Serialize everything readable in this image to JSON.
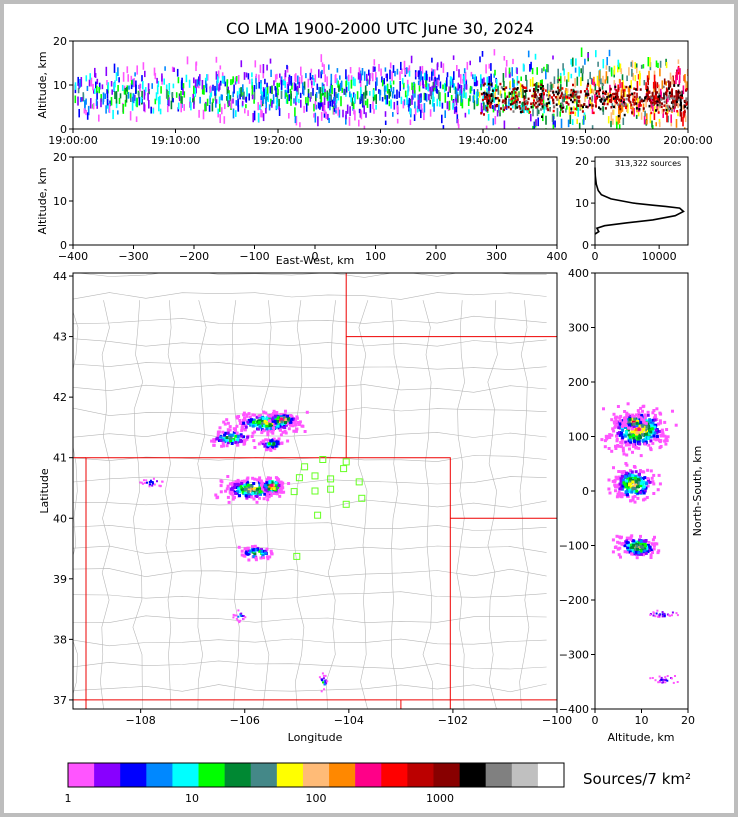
{
  "chart_data": [
    {
      "type": "heatmap",
      "panel": "time-altitude",
      "title": "CO LMA 1900-2000 UTC June 30, 2024",
      "ylabel": "Altitude, km",
      "ylim": [
        0,
        20
      ],
      "yticks": [
        "0",
        "10",
        "20"
      ],
      "xticks": [
        "19:00:00",
        "19:10:00",
        "19:20:00",
        "19:30:00",
        "19:40:00",
        "19:50:00",
        "20:00:00"
      ]
    },
    {
      "type": "heatmap",
      "panel": "east-west-altitude",
      "xlabel": "East-West, km",
      "ylabel": "Altitude, km",
      "xlim": [
        -400,
        400
      ],
      "ylim": [
        0,
        20
      ],
      "xticks": [
        "−400",
        "−300",
        "−200",
        "−100",
        "0",
        "100",
        "200",
        "300",
        "400"
      ],
      "yticks": [
        "0",
        "10",
        "20"
      ]
    },
    {
      "type": "line",
      "panel": "altitude-histogram",
      "annotation": "313,322 sources",
      "xlim": [
        0,
        14500
      ],
      "ylim": [
        0,
        21
      ],
      "xticks": [
        "0",
        "10000"
      ],
      "yticks": [
        "0",
        "10",
        "20"
      ],
      "x": [
        0,
        600,
        300,
        1500,
        5000,
        9000,
        12500,
        13800,
        13200,
        11000,
        9000,
        6000,
        2500,
        1000,
        500,
        200,
        50,
        0
      ],
      "y": [
        2.6,
        3.2,
        4.0,
        4.6,
        5.3,
        6.0,
        7.0,
        8.0,
        8.8,
        9.2,
        9.5,
        10.0,
        11.0,
        12.0,
        13.0,
        14.5,
        16.5,
        18.5
      ]
    },
    {
      "type": "heatmap",
      "panel": "plan-view",
      "xlabel": "Longitude",
      "ylabel": "Latitude",
      "xlim": [
        -109.3,
        -100
      ],
      "ylim": [
        36.85,
        44.05
      ],
      "xticks": [
        "−108",
        "−106",
        "−104",
        "−102",
        "−100"
      ],
      "yticks": [
        "37",
        "38",
        "39",
        "40",
        "41",
        "42",
        "43",
        "44"
      ],
      "stations": [
        {
          "lon": -104.5,
          "lat": 40.97
        },
        {
          "lon": -104.05,
          "lat": 40.93
        },
        {
          "lon": -104.85,
          "lat": 40.85
        },
        {
          "lon": -104.1,
          "lat": 40.82
        },
        {
          "lon": -104.95,
          "lat": 40.67
        },
        {
          "lon": -104.65,
          "lat": 40.7
        },
        {
          "lon": -104.35,
          "lat": 40.65
        },
        {
          "lon": -103.8,
          "lat": 40.6
        },
        {
          "lon": -104.35,
          "lat": 40.48
        },
        {
          "lon": -104.65,
          "lat": 40.45
        },
        {
          "lon": -105.05,
          "lat": 40.44
        },
        {
          "lon": -103.75,
          "lat": 40.33
        },
        {
          "lon": -104.05,
          "lat": 40.23
        },
        {
          "lon": -104.6,
          "lat": 40.05
        },
        {
          "lon": -105.0,
          "lat": 39.37
        }
      ]
    },
    {
      "type": "heatmap",
      "panel": "altitude-north-south",
      "xlabel": "Altitude, km",
      "ylabel": "North-South, km",
      "xlim": [
        0,
        20
      ],
      "ylim": [
        -400,
        400
      ],
      "xticks": [
        "0",
        "10",
        "20"
      ],
      "yticks": [
        "−400",
        "−300",
        "−200",
        "−100",
        "0",
        "100",
        "200",
        "300",
        "400"
      ]
    }
  ],
  "colorbar": {
    "label": "Sources/7 km²",
    "tick_labels": [
      "1",
      "10",
      "100",
      "1000"
    ],
    "colors": [
      "#ff55ff",
      "#8800ff",
      "#0000ff",
      "#0088ff",
      "#00ffff",
      "#00ff00",
      "#008833",
      "#448888",
      "#ffff00",
      "#ffbb77",
      "#ff8800",
      "#ff0088",
      "#ff0000",
      "#bb0000",
      "#880000",
      "#000000",
      "#808080",
      "#c0c0c0",
      "#ffffff"
    ]
  }
}
